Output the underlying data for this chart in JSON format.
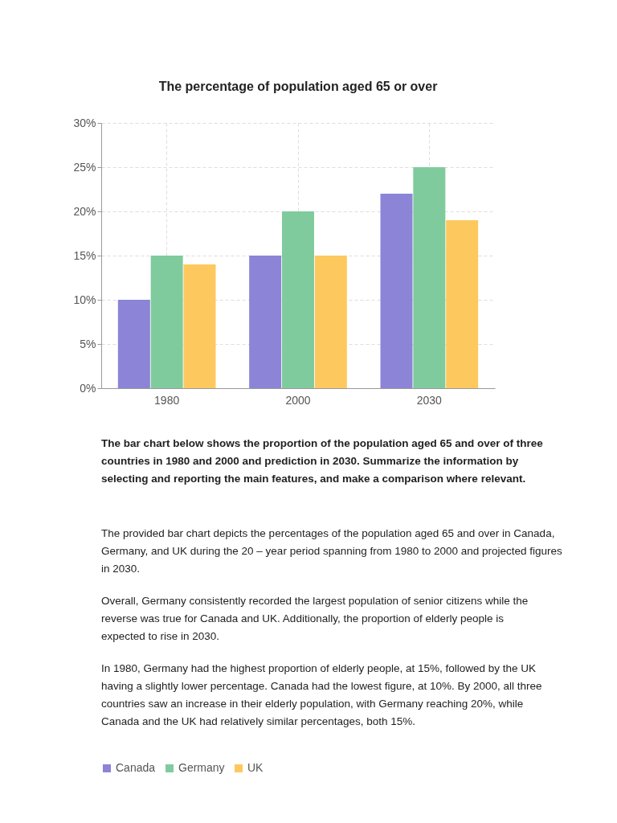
{
  "chart_data": {
    "type": "bar",
    "title": "The percentage of population aged 65 or over",
    "categories": [
      "1980",
      "2000",
      "2030"
    ],
    "series": [
      {
        "name": "Canada",
        "color": "#8b84d7",
        "values": [
          10,
          15,
          22
        ]
      },
      {
        "name": "Germany",
        "color": "#80cb9d",
        "values": [
          15,
          20,
          25
        ]
      },
      {
        "name": "UK",
        "color": "#fdc95e",
        "values": [
          14,
          15,
          19
        ]
      }
    ],
    "ylim": [
      0,
      30
    ],
    "yticks": [
      {
        "value": 0,
        "label": "0%"
      },
      {
        "value": 5,
        "label": "5%"
      },
      {
        "value": 10,
        "label": "10%"
      },
      {
        "value": 15,
        "label": "15%"
      },
      {
        "value": 20,
        "label": "20%"
      },
      {
        "value": 25,
        "label": "25%"
      },
      {
        "value": 30,
        "label": "30%"
      }
    ],
    "grid": true,
    "legend": "bottom",
    "annotations": [
      "The bar chart below shows the proportion of the population aged 65 and over of three countries in 1980 and 2000 and prediction in 2030. Summarize the information by selecting and reporting the main features, and make a comparison where relevant.",
      "The provided bar chart depicts the percentages of the population aged 65 and over in Canada, Germany, and UK during the 20 – year period spanning from 1980 to 2000 and projected figures in 2030.",
      "Overall, Germany consistently recorded the largest population of senior citizens while the reverse was true for Canada and UK. Additionally, the proportion of elderly people is expected to rise in 2030.",
      "In 1980, Germany had the highest proportion of elderly people, at 15%, followed by the UK having a slightly lower percentage. Canada had the lowest figure, at 10%. By 2000, all three countries saw an increase in their elderly population, with Germany reaching 20%, while Canada and the UK had relatively similar percentages, both 15%."
    ]
  }
}
